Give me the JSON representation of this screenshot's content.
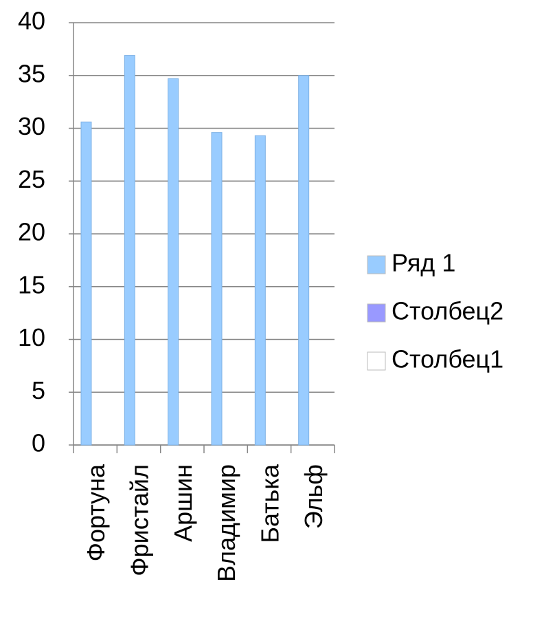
{
  "chart_data": {
    "type": "bar",
    "categories": [
      "Фортуна",
      "Фристайл",
      "Аршин",
      "Владимир",
      "Батька",
      "Эльф"
    ],
    "series": [
      {
        "name": "Ряд 1",
        "color": "#99ccff",
        "values": [
          30.6,
          36.9,
          34.7,
          29.6,
          29.3,
          35.0
        ]
      },
      {
        "name": "Столбец2",
        "color": "#9999ff",
        "values": [
          null,
          null,
          null,
          null,
          null,
          null
        ]
      },
      {
        "name": "Столбец1",
        "color": "#ffffff",
        "values": [
          null,
          null,
          null,
          null,
          null,
          null
        ]
      }
    ],
    "ylim": [
      0,
      40
    ],
    "yticks": [
      0,
      5,
      10,
      15,
      20,
      25,
      30,
      35,
      40
    ],
    "grid": true,
    "legend": "right"
  }
}
